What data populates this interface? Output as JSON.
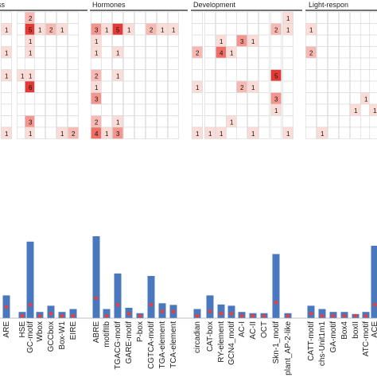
{
  "chart_data": [
    {
      "type": "heatmap",
      "groups": [
        {
          "name": "ss",
          "columns": [
            "ARE",
            "HSE",
            "GC-motif",
            "Wbox",
            "GCCbox",
            "Box-W1",
            "EIRE"
          ]
        },
        {
          "name": "Hormones",
          "columns": [
            "ABRE",
            "motifIIb",
            "TGACG-motif",
            "GARE-motif",
            "P-box",
            "CGTCA-motif",
            "TGA-element",
            "TCA-element"
          ]
        },
        {
          "name": "Development",
          "columns": [
            "circadian",
            "CAT-box",
            "RY-element",
            "GCN4_motif",
            "AC-I",
            "AC-II",
            "OCT",
            "Skn-1_motif",
            "plant_AP-2-like"
          ]
        },
        {
          "name": "Light-respon",
          "columns": [
            "CATT-motif",
            "chs-Unit1m1",
            "GA-motif",
            "Box4",
            "boxII",
            "ATC-motif",
            "ACE"
          ]
        }
      ],
      "rows": [
        [
          "",
          "",
          "2",
          "",
          "",
          "",
          "",
          "",
          "",
          "",
          "",
          "",
          "",
          "",
          "",
          "",
          "",
          "",
          "",
          "",
          "",
          "",
          "",
          "1",
          "",
          "",
          "",
          "",
          "",
          "",
          ""
        ],
        [
          "1",
          "",
          "5",
          "1",
          "2",
          "1",
          "",
          "3",
          "1",
          "5",
          "1",
          "",
          "2",
          "1",
          "1",
          "",
          "",
          "",
          "",
          "",
          "",
          "",
          "2",
          "1",
          "1",
          "",
          "",
          "",
          "",
          "",
          ""
        ],
        [
          "",
          "",
          "1",
          "",
          "",
          "",
          "",
          "1",
          "",
          "",
          "",
          "",
          "",
          "",
          "",
          "",
          "",
          "1",
          "",
          "3",
          "1",
          "",
          "",
          "",
          "",
          "",
          "",
          "",
          "",
          "",
          ""
        ],
        [
          "1",
          "",
          "1",
          "",
          "",
          "",
          "",
          "1",
          "",
          "1",
          "",
          "",
          "",
          "",
          "",
          "2",
          "",
          "4",
          "1",
          "",
          "",
          "",
          "",
          "",
          "2",
          "",
          "",
          "",
          "",
          "",
          ""
        ],
        [
          "",
          "",
          "",
          "",
          "",
          "",
          "",
          "",
          "",
          "",
          "",
          "",
          "",
          "",
          "",
          "",
          "",
          "",
          "",
          "",
          "",
          "",
          "",
          "",
          "",
          "",
          "",
          "",
          "",
          "",
          ""
        ],
        [
          "1",
          "1",
          "1",
          "",
          "",
          "",
          "",
          "2",
          "",
          "1",
          "",
          "",
          "",
          "",
          "",
          "",
          "",
          "",
          "",
          "",
          "",
          "",
          "5",
          "",
          "",
          "",
          "",
          "",
          "",
          "",
          ""
        ],
        [
          "",
          "",
          "6",
          "",
          "",
          "",
          "",
          "1",
          "",
          "",
          "",
          "",
          "",
          "",
          "",
          "1",
          "",
          "",
          "",
          "2",
          "1",
          "",
          "",
          "",
          "",
          "",
          "",
          "",
          "",
          "",
          ""
        ],
        [
          "",
          "",
          "",
          "",
          "",
          "",
          "",
          "3",
          "",
          "",
          "",
          "",
          "",
          "",
          "",
          "",
          "",
          "",
          "",
          "",
          "",
          "",
          "3",
          "",
          "",
          "",
          "",
          "",
          "",
          "1",
          ""
        ],
        [
          "",
          "",
          "",
          "",
          "",
          "",
          "",
          "",
          "",
          "",
          "",
          "",
          "",
          "",
          "",
          "",
          "",
          "",
          "",
          "",
          "",
          "",
          "1",
          "",
          "",
          "",
          "",
          "",
          "1",
          "",
          "1"
        ],
        [
          "",
          "",
          "3",
          "",
          "",
          "",
          "",
          "2",
          "",
          "1",
          "",
          "",
          "",
          "",
          "",
          "",
          "",
          "",
          "1",
          "",
          "",
          "",
          "",
          "",
          "",
          "",
          "",
          "",
          "",
          "",
          ""
        ],
        [
          "1",
          "",
          "1",
          "",
          "",
          "1",
          "2",
          "4",
          "1",
          "3",
          "",
          "",
          "",
          "",
          "",
          "1",
          "1",
          "1",
          "",
          "",
          "1",
          "",
          "",
          "1",
          "",
          "1",
          "",
          "",
          "",
          "",
          ""
        ]
      ],
      "series": [
        {
          "name": "",
          "values": [
            5.5,
            1.5,
            18.5,
            1.5,
            3,
            1.5,
            2.2,
            19.8,
            2.2,
            10.8,
            2.5,
            1.2,
            10.2,
            3.6,
            3.2,
            2.2,
            5.5,
            3.3,
            3,
            1.5,
            1.2,
            1.2,
            15.5,
            1.2,
            3,
            2.2,
            1.5,
            1.5,
            1,
            1.5,
            17.5
          ]
        },
        {
          "name": "",
          "values": [
            5,
            1,
            6,
            1,
            2,
            1,
            1,
            9,
            1,
            6,
            2,
            1,
            6,
            3,
            3,
            1,
            3,
            2,
            2,
            1,
            1,
            1,
            7,
            1,
            2,
            1,
            1,
            1,
            1,
            1,
            6
          ]
        }
      ]
    }
  ]
}
